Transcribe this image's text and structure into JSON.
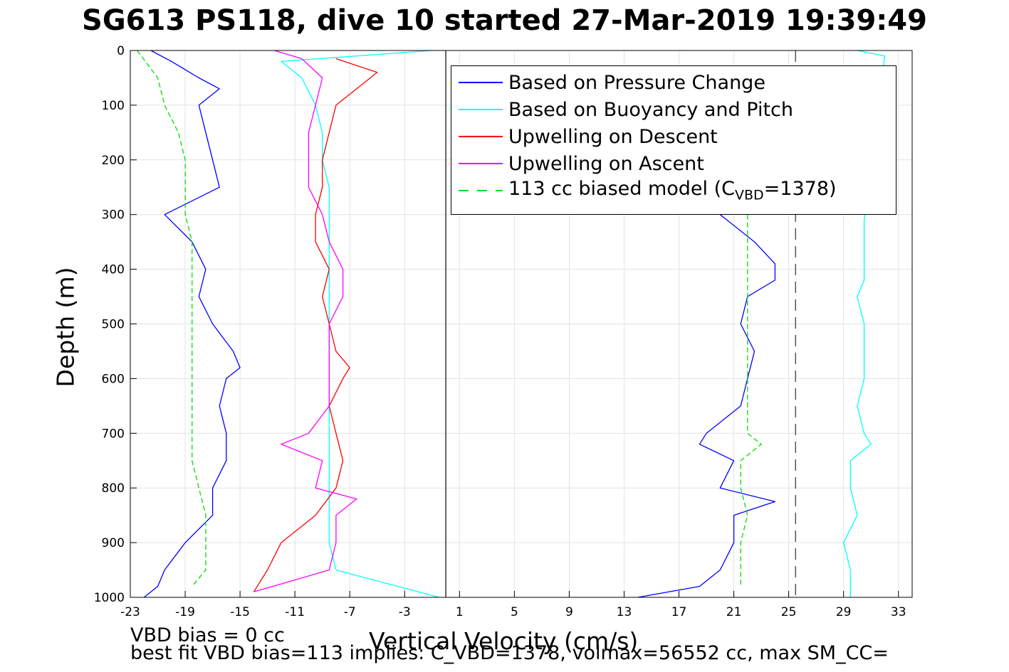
{
  "chart_data": {
    "type": "line",
    "title": "SG613 PS118, dive 10 started 27-Mar-2019 19:39:49",
    "xlabel": "Vertical Velocity (cm/s)",
    "ylabel": "Depth (m)",
    "xlim": [
      -23,
      34
    ],
    "ylim": [
      0,
      1000
    ],
    "y_reversed": true,
    "xticks": [
      -23,
      -19,
      -15,
      -11,
      -7,
      -3,
      1,
      5,
      9,
      13,
      17,
      21,
      25,
      29,
      33
    ],
    "yticks": [
      0,
      100,
      200,
      300,
      400,
      500,
      600,
      700,
      800,
      900,
      1000
    ],
    "grid": true,
    "legend_position": "top-right",
    "reference_lines": {
      "zero_velocity_x": 0,
      "dashed_x": 25.5
    },
    "annotations": [
      "VBD bias = 0 cc",
      "best fit VBD bias=113 implies: C_VBD=1378, volmax=56552 cc, max SM_CC="
    ],
    "series": [
      {
        "name": "Based on Pressure Change",
        "color": "#0000ff",
        "style": "solid",
        "segments": [
          {
            "depth": [
              0,
              20,
              50,
              70,
              100,
              150,
              200,
              250,
              300,
              350,
              400,
              450,
              500,
              550,
              580,
              600,
              650,
              700,
              750,
              800,
              850,
              900,
              950,
              980,
              1000
            ],
            "values": [
              -21.5,
              -20,
              -18,
              -16.5,
              -18,
              -17.5,
              -17,
              -16.5,
              -20.5,
              -18.5,
              -17.5,
              -18,
              -17,
              -15.5,
              -15,
              -16,
              -16.5,
              -16,
              -16,
              -17,
              -17,
              -19,
              -20.5,
              -21,
              -22
            ]
          },
          {
            "depth": [
              300,
              350,
              390,
              420,
              450,
              500,
              550,
              600,
              650,
              700,
              720,
              750,
              800,
              825,
              850,
              900,
              950,
              980,
              1000
            ],
            "values": [
              20,
              22.5,
              24,
              24,
              22,
              21.5,
              22.5,
              22,
              21.5,
              19,
              18.5,
              21,
              20,
              24,
              21,
              21,
              20,
              18.5,
              14
            ]
          }
        ]
      },
      {
        "name": "Based on Buoyancy and Pitch",
        "color": "#00ffff",
        "style": "solid",
        "segments": [
          {
            "depth": [
              0,
              20,
              50,
              100,
              150,
              200,
              250,
              300,
              350,
              400,
              450,
              500,
              550,
              600,
              650,
              700,
              750,
              800,
              850,
              900,
              950,
              990,
              1000
            ],
            "values": [
              -1,
              -12,
              -10.5,
              -9.5,
              -9,
              -9,
              -8.5,
              -8.5,
              -8.5,
              -8.5,
              -8.5,
              -8.5,
              -8.5,
              -8.5,
              -8.5,
              -8.5,
              -8.5,
              -8.5,
              -8.5,
              -8.5,
              -8,
              -2,
              -0.5
            ]
          },
          {
            "depth": [
              0,
              10,
              310,
              350,
              400,
              420,
              450,
              500,
              550,
              600,
              650,
              700,
              720,
              750,
              800,
              850,
              900,
              950,
              1000
            ],
            "values": [
              30,
              32,
              30.5,
              30.5,
              30.5,
              30.5,
              30,
              30.5,
              30.5,
              30.5,
              30,
              30.5,
              31,
              29.5,
              29.5,
              30,
              29,
              29.5,
              29.5
            ]
          }
        ]
      },
      {
        "name": "Upwelling on Descent",
        "color": "#ff0000",
        "style": "solid",
        "segments": [
          {
            "depth": [
              15,
              40,
              60,
              100,
              150,
              200,
              250,
              300,
              350,
              400,
              450,
              500,
              550,
              580,
              600,
              650,
              700,
              750,
              800,
              850,
              900,
              950,
              990
            ],
            "values": [
              -8,
              -5,
              -6,
              -8,
              -8.5,
              -9,
              -9,
              -9.5,
              -9.5,
              -8.5,
              -9,
              -8.5,
              -8,
              -7,
              -7.5,
              -8.5,
              -8,
              -7.5,
              -8,
              -9.5,
              -12,
              -13,
              -14
            ]
          }
        ]
      },
      {
        "name": "Upwelling on Ascent",
        "color": "#ff00ff",
        "style": "solid",
        "segments": [
          {
            "depth": [
              0,
              15,
              50,
              100,
              150,
              200,
              250,
              300,
              350,
              400,
              450,
              500,
              550,
              600,
              650,
              700,
              720,
              750,
              800,
              820,
              850,
              900,
              950,
              990
            ],
            "values": [
              -12.5,
              -10.5,
              -9,
              -9.5,
              -10,
              -10,
              -10,
              -9,
              -8.5,
              -7.5,
              -7.5,
              -8.5,
              -8.5,
              -8.5,
              -8.5,
              -10,
              -12,
              -9,
              -9.5,
              -6.5,
              -8,
              -8,
              -8.5,
              -14
            ]
          }
        ]
      },
      {
        "name": "113 cc biased model (C_VBD=1378)",
        "color": "#00dd00",
        "style": "dashed",
        "segments": [
          {
            "depth": [
              0,
              50,
              100,
              150,
              200,
              250,
              300,
              350,
              400,
              450,
              500,
              550,
              600,
              650,
              700,
              750,
              800,
              850,
              900,
              950,
              980
            ],
            "values": [
              -22.5,
              -21,
              -20.5,
              -19.5,
              -19,
              -19,
              -19,
              -18.5,
              -18.5,
              -18.5,
              -18.5,
              -18.5,
              -18.5,
              -18.5,
              -18.5,
              -18.5,
              -18,
              -17.5,
              -17.5,
              -17.5,
              -18.5
            ]
          },
          {
            "depth": [
              300,
              350,
              400,
              450,
              500,
              550,
              600,
              650,
              700,
              720,
              750,
              800,
              850,
              900,
              950,
              980
            ],
            "values": [
              22,
              22,
              22,
              22,
              22,
              22,
              22,
              22,
              22,
              23,
              21.5,
              21.5,
              22,
              21.5,
              21.5,
              21.5
            ]
          }
        ]
      }
    ]
  },
  "legend": {
    "entries": [
      {
        "label": "Based on Pressure Change",
        "color": "#0000ff",
        "dashed": false
      },
      {
        "label": "Based on Buoyancy and Pitch",
        "color": "#00ffff",
        "dashed": false
      },
      {
        "label": "Upwelling on Descent",
        "color": "#ff0000",
        "dashed": false
      },
      {
        "label": "Upwelling on Ascent",
        "color": "#ff00ff",
        "dashed": false
      },
      {
        "label_pre": "113 cc biased model (C",
        "label_sub": "VBD",
        "label_post": "=1378)",
        "color": "#00dd00",
        "dashed": true
      }
    ]
  }
}
